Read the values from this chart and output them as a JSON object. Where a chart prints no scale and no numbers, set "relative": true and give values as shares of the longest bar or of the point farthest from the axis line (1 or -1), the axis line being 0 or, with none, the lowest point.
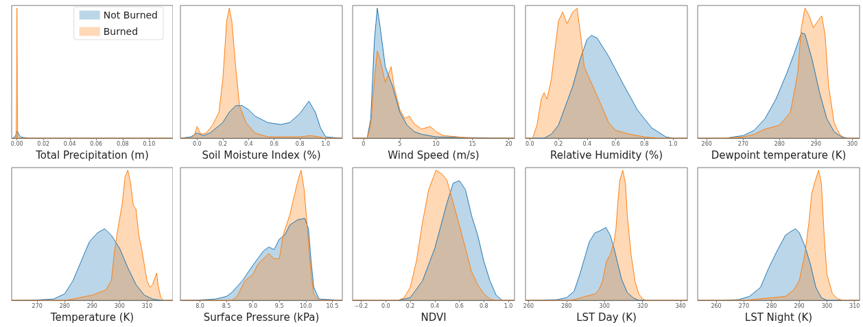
{
  "chart_data": [
    {
      "type": "area",
      "xlabel": "Total Precipitation (m)",
      "relative": true,
      "legend": "top right",
      "grid": false,
      "xlim": [
        -0.004,
        0.118
      ],
      "xticks": [
        {
          "value": 0,
          "label": "0.00"
        },
        {
          "value": 0.02,
          "label": "0.02"
        },
        {
          "value": 0.04,
          "label": "0.04"
        },
        {
          "value": 0.06,
          "label": "0.06"
        },
        {
          "value": 0.08,
          "label": "0.08"
        },
        {
          "value": 0.1,
          "label": "0.10"
        }
      ],
      "series": [
        {
          "name": "Not Burned",
          "color": "#1f77b4",
          "x": [
            -0.004,
            -0.002,
            -0.001,
            -0.0005,
            0,
            0.0005,
            0.001,
            0.002,
            0.003,
            0.005,
            0.008,
            0.012,
            0.118
          ],
          "values": [
            0,
            0.005,
            0.02,
            0.04,
            0.05,
            0.05,
            0.04,
            0.02,
            0.01,
            0.005,
            0.002,
            0,
            0
          ]
        },
        {
          "name": "Burned",
          "color": "#ff7f0e",
          "x": [
            -0.004,
            -0.0006,
            -0.0003,
            0,
            0.0003,
            0.0006,
            0.002,
            0.118
          ],
          "values": [
            0,
            0,
            0.3,
            1.0,
            0.3,
            0,
            0,
            0
          ]
        }
      ]
    },
    {
      "type": "area",
      "xlabel": "Soil Moisture Index (%)",
      "relative": true,
      "grid": false,
      "xlim": [
        -0.13,
        1.13
      ],
      "xticks": [
        {
          "value": 0,
          "label": "0.0"
        },
        {
          "value": 0.2,
          "label": "0.2"
        },
        {
          "value": 0.4,
          "label": "0.4"
        },
        {
          "value": 0.6,
          "label": "0.6"
        },
        {
          "value": 0.8,
          "label": "0.8"
        },
        {
          "value": 1,
          "label": "1.0"
        }
      ],
      "series": [
        {
          "color": "#1f77b4",
          "x": [
            -0.13,
            -0.05,
            0,
            0.05,
            0.1,
            0.2,
            0.25,
            0.3,
            0.35,
            0.4,
            0.45,
            0.55,
            0.65,
            0.72,
            0.8,
            0.87,
            0.92,
            0.96,
            1.0,
            1.13
          ],
          "values": [
            0,
            0.01,
            0.04,
            0.02,
            0.04,
            0.12,
            0.2,
            0.25,
            0.25,
            0.22,
            0.17,
            0.12,
            0.105,
            0.12,
            0.19,
            0.285,
            0.2,
            0.08,
            0.01,
            0
          ]
        },
        {
          "color": "#ff7f0e",
          "x": [
            -0.13,
            -0.05,
            -0.02,
            0,
            0.03,
            0.07,
            0.12,
            0.17,
            0.2,
            0.23,
            0.25,
            0.27,
            0.3,
            0.33,
            0.38,
            0.45,
            0.55,
            0.8,
            0.88,
            0.95,
            1.0,
            1.13
          ],
          "values": [
            0,
            0,
            0.03,
            0.09,
            0.03,
            0.04,
            0.1,
            0.2,
            0.45,
            0.9,
            1.0,
            0.9,
            0.55,
            0.25,
            0.12,
            0.04,
            0.01,
            0.01,
            0.02,
            0.01,
            0,
            0
          ]
        }
      ]
    },
    {
      "type": "area",
      "xlabel": "Wind Speed (m/s)",
      "relative": true,
      "grid": false,
      "xlim": [
        -1.5,
        20.8
      ],
      "xticks": [
        0,
        5,
        10,
        15,
        20
      ],
      "series": [
        {
          "color": "#1f77b4",
          "x": [
            -1.5,
            0.5,
            1,
            1.5,
            1.9,
            2.3,
            3,
            4,
            5,
            6,
            7,
            8,
            10,
            14,
            20.8
          ],
          "values": [
            0,
            0,
            0.15,
            0.75,
            1.0,
            0.85,
            0.55,
            0.4,
            0.2,
            0.1,
            0.05,
            0.03,
            0.01,
            0.005,
            0
          ]
        },
        {
          "color": "#ff7f0e",
          "x": [
            -1.5,
            0.5,
            1,
            1.5,
            1.9,
            2.3,
            3,
            3.5,
            3.8,
            4.2,
            5,
            5.7,
            6.3,
            7,
            8,
            9.2,
            10,
            11,
            13,
            15,
            20.8
          ],
          "values": [
            0,
            0,
            0.1,
            0.45,
            0.67,
            0.6,
            0.43,
            0.5,
            0.55,
            0.4,
            0.22,
            0.15,
            0.17,
            0.11,
            0.07,
            0.09,
            0.05,
            0.02,
            0.01,
            0,
            0
          ]
        }
      ]
    },
    {
      "type": "area",
      "xlabel": "Relative Humidity (%)",
      "relative": true,
      "grid": false,
      "xlim": [
        -0.03,
        1.1
      ],
      "xticks": [
        {
          "value": 0,
          "label": "0.0"
        },
        {
          "value": 0.2,
          "label": "0.2"
        },
        {
          "value": 0.4,
          "label": "0.4"
        },
        {
          "value": 0.6,
          "label": "0.6"
        },
        {
          "value": 0.8,
          "label": "0.8"
        },
        {
          "value": 1,
          "label": "1.0"
        }
      ],
      "series": [
        {
          "color": "#1f77b4",
          "x": [
            -0.03,
            0.1,
            0.15,
            0.2,
            0.3,
            0.35,
            0.4,
            0.43,
            0.47,
            0.55,
            0.65,
            0.75,
            0.85,
            0.95,
            1.0,
            1.1
          ],
          "values": [
            0,
            0,
            0.03,
            0.1,
            0.4,
            0.6,
            0.76,
            0.79,
            0.77,
            0.63,
            0.42,
            0.22,
            0.08,
            0.01,
            0,
            0
          ]
        },
        {
          "color": "#ff7f0e",
          "x": [
            -0.03,
            0.02,
            0.05,
            0.08,
            0.1,
            0.12,
            0.15,
            0.2,
            0.23,
            0.26,
            0.3,
            0.33,
            0.36,
            0.38,
            0.42,
            0.46,
            0.5,
            0.55,
            0.6,
            0.7,
            0.8,
            0.9,
            1.1
          ],
          "values": [
            0,
            0,
            0.1,
            0.3,
            0.35,
            0.3,
            0.45,
            0.9,
            0.97,
            0.88,
            0.97,
            1.0,
            0.75,
            0.55,
            0.45,
            0.35,
            0.25,
            0.12,
            0.06,
            0.03,
            0.01,
            0,
            0
          ]
        }
      ]
    },
    {
      "type": "area",
      "xlabel": "Dewpoint temperature (K)",
      "relative": true,
      "grid": false,
      "xlim": [
        257.5,
        302
      ],
      "xticks": [
        260,
        270,
        280,
        290,
        300
      ],
      "series": [
        {
          "color": "#1f77b4",
          "x": [
            257.5,
            265,
            270,
            273,
            276,
            279,
            282,
            284,
            286,
            287,
            289,
            291,
            293,
            295,
            297,
            299,
            302
          ],
          "values": [
            0,
            0,
            0.02,
            0.06,
            0.15,
            0.3,
            0.5,
            0.65,
            0.81,
            0.8,
            0.6,
            0.35,
            0.15,
            0.05,
            0.01,
            0,
            0
          ]
        },
        {
          "color": "#ff7f0e",
          "x": [
            257.5,
            265,
            270,
            273,
            276,
            280,
            283,
            285,
            286,
            287,
            288,
            289.3,
            290.5,
            291.6,
            292.5,
            293.5,
            295,
            296.5,
            298,
            302
          ],
          "values": [
            0,
            0,
            0.01,
            0.03,
            0.07,
            0.1,
            0.2,
            0.5,
            0.85,
            1.0,
            0.95,
            0.85,
            0.9,
            0.94,
            0.8,
            0.4,
            0.12,
            0.03,
            0,
            0
          ]
        }
      ]
    },
    {
      "type": "area",
      "xlabel": "Temperature (K)",
      "relative": true,
      "grid": false,
      "xlim": [
        260.7,
        319.4
      ],
      "xticks": [
        270,
        280,
        290,
        300,
        310
      ],
      "series": [
        {
          "color": "#1f77b4",
          "x": [
            260.7,
            262,
            270,
            276,
            280,
            283,
            286,
            289,
            292,
            294.6,
            297,
            300,
            303,
            306,
            309,
            312,
            315,
            319.4
          ],
          "values": [
            0,
            0,
            0.003,
            0.01,
            0.05,
            0.15,
            0.3,
            0.45,
            0.52,
            0.55,
            0.5,
            0.4,
            0.25,
            0.12,
            0.04,
            0.01,
            0,
            0
          ]
        },
        {
          "color": "#ff7f0e",
          "x": [
            260.7,
            280,
            283,
            290,
            295,
            297,
            298,
            299,
            301,
            302,
            303,
            304,
            305,
            306,
            307,
            308,
            310,
            311,
            312,
            313.5,
            314,
            315,
            316,
            319.4
          ],
          "values": [
            0,
            0,
            0.01,
            0.04,
            0.08,
            0.15,
            0.35,
            0.5,
            0.75,
            0.95,
            1.0,
            0.9,
            0.73,
            0.7,
            0.5,
            0.4,
            0.15,
            0.1,
            0.12,
            0.21,
            0.12,
            0.02,
            0,
            0
          ]
        }
      ]
    },
    {
      "type": "area",
      "xlabel": "Surface Pressure (kPa)",
      "relative": true,
      "grid": false,
      "xlim": [
        7.63,
        10.69
      ],
      "xticks": [
        {
          "value": 8,
          "label": "8.0"
        },
        {
          "value": 8.5,
          "label": "8.5"
        },
        {
          "value": 9,
          "label": "9.0"
        },
        {
          "value": 9.5,
          "label": "9.5"
        },
        {
          "value": 10,
          "label": "10.0"
        },
        {
          "value": 10.5,
          "label": "10.5"
        }
      ],
      "series": [
        {
          "color": "#1f77b4",
          "x": [
            7.63,
            8.0,
            8.3,
            8.5,
            8.6,
            8.8,
            9.0,
            9.2,
            9.3,
            9.4,
            9.5,
            9.6,
            9.7,
            9.85,
            9.98,
            10.05,
            10.1,
            10.15,
            10.25,
            10.69
          ],
          "values": [
            0,
            0.003,
            0.01,
            0.03,
            0.06,
            0.15,
            0.27,
            0.38,
            0.41,
            0.39,
            0.47,
            0.5,
            0.58,
            0.62,
            0.63,
            0.55,
            0.3,
            0.1,
            0.01,
            0
          ]
        },
        {
          "color": "#ff7f0e",
          "x": [
            7.63,
            8.6,
            8.7,
            8.85,
            9.0,
            9.1,
            9.3,
            9.4,
            9.5,
            9.57,
            9.7,
            9.75,
            9.85,
            9.91,
            9.97,
            10.05,
            10.1,
            10.15,
            10.25,
            10.69
          ],
          "values": [
            0,
            0,
            0.03,
            0.15,
            0.2,
            0.28,
            0.36,
            0.32,
            0.32,
            0.5,
            0.66,
            0.75,
            0.92,
            1.0,
            0.85,
            0.45,
            0.2,
            0.05,
            0,
            0
          ]
        }
      ]
    },
    {
      "type": "area",
      "xlabel": "NDVI",
      "relative": true,
      "grid": false,
      "xlim": [
        -0.27,
        1.05
      ],
      "xticks": [
        {
          "value": -0.2,
          "label": "−0.2"
        },
        {
          "value": 0,
          "label": "0.0"
        },
        {
          "value": 0.2,
          "label": "0.2"
        },
        {
          "value": 0.4,
          "label": "0.4"
        },
        {
          "value": 0.6,
          "label": "0.6"
        },
        {
          "value": 0.8,
          "label": "0.8"
        },
        {
          "value": 1,
          "label": "1.0"
        }
      ],
      "series": [
        {
          "color": "#1f77b4",
          "x": [
            -0.27,
            0.1,
            0.2,
            0.3,
            0.4,
            0.5,
            0.55,
            0.6,
            0.65,
            0.7,
            0.75,
            0.8,
            0.85,
            0.9,
            0.95,
            1.05
          ],
          "values": [
            0,
            0,
            0.02,
            0.15,
            0.4,
            0.75,
            0.9,
            0.92,
            0.85,
            0.65,
            0.5,
            0.3,
            0.15,
            0.04,
            0,
            0
          ]
        },
        {
          "color": "#ff7f0e",
          "x": [
            -0.27,
            0.1,
            0.15,
            0.2,
            0.25,
            0.3,
            0.35,
            0.41,
            0.46,
            0.5,
            0.55,
            0.6,
            0.65,
            0.7,
            0.75,
            0.8,
            0.85,
            0.9,
            1.05
          ],
          "values": [
            0,
            0,
            0.02,
            0.1,
            0.3,
            0.6,
            0.85,
            1.0,
            0.97,
            0.92,
            0.75,
            0.58,
            0.4,
            0.22,
            0.12,
            0.05,
            0.01,
            0,
            0
          ]
        }
      ]
    },
    {
      "type": "area",
      "xlabel": "LST Day (K)",
      "relative": true,
      "grid": false,
      "xlim": [
        258.4,
        343.6
      ],
      "xticks": [
        260,
        280,
        300,
        320,
        340
      ],
      "series": [
        {
          "color": "#1f77b4",
          "x": [
            258.4,
            262,
            275,
            280,
            284,
            287,
            290,
            292,
            295,
            297,
            300.7,
            303,
            305,
            307,
            309,
            312,
            315,
            318,
            343.6
          ],
          "values": [
            0,
            0,
            0.005,
            0.02,
            0.07,
            0.2,
            0.35,
            0.45,
            0.52,
            0.53,
            0.56,
            0.5,
            0.4,
            0.28,
            0.16,
            0.06,
            0.02,
            0,
            0
          ]
        },
        {
          "color": "#ff7f0e",
          "x": [
            258.4,
            282,
            285,
            290,
            295,
            297,
            299,
            301,
            303,
            305,
            306,
            307,
            308,
            309.6,
            311,
            312,
            314,
            316,
            318,
            320,
            322,
            343.6
          ],
          "values": [
            0,
            0,
            0.01,
            0.03,
            0.05,
            0.08,
            0.15,
            0.3,
            0.35,
            0.45,
            0.55,
            0.75,
            0.92,
            1.0,
            0.9,
            0.65,
            0.35,
            0.15,
            0.05,
            0.01,
            0,
            0
          ]
        }
      ]
    },
    {
      "type": "area",
      "xlabel": "LST Night (K)",
      "relative": true,
      "grid": false,
      "xlim": [
        253.3,
        311.8
      ],
      "xticks": [
        260,
        270,
        280,
        290,
        300,
        310
      ],
      "series": [
        {
          "color": "#1f77b4",
          "x": [
            253.3,
            262,
            268,
            272,
            276,
            279,
            282,
            285,
            287,
            288.7,
            290,
            292,
            294,
            296,
            298,
            300,
            311.8
          ],
          "values": [
            0,
            0,
            0.005,
            0.03,
            0.1,
            0.25,
            0.38,
            0.5,
            0.53,
            0.55,
            0.52,
            0.42,
            0.28,
            0.1,
            0.02,
            0,
            0
          ]
        },
        {
          "color": "#ff7f0e",
          "x": [
            253.3,
            270,
            275,
            280,
            285,
            288,
            290,
            292,
            293.5,
            294.5,
            295.5,
            297,
            298,
            299,
            300,
            302,
            304,
            306,
            311.8
          ],
          "values": [
            0,
            0,
            0.01,
            0.02,
            0.03,
            0.08,
            0.15,
            0.35,
            0.6,
            0.82,
            0.9,
            1.0,
            0.9,
            0.5,
            0.2,
            0.05,
            0.01,
            0,
            0
          ]
        }
      ]
    }
  ]
}
